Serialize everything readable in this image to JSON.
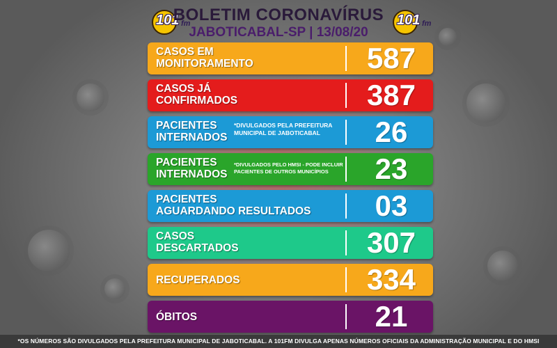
{
  "header": {
    "title": "BOLETIM CORONAVÍRUS",
    "subtitle": "JABOTICABAL-SP | 13/08/20",
    "logo_text": "101",
    "logo_suffix": "fm"
  },
  "rows": [
    {
      "label_line1": "CASOS EM",
      "label_line2": "MONITORAMENTO",
      "note": "",
      "value": "587",
      "color": "#f7a81b"
    },
    {
      "label_line1": "CASOS JÁ",
      "label_line2": "CONFIRMADOS",
      "note": "",
      "value": "387",
      "color": "#e41c1c"
    },
    {
      "label_line1": "PACIENTES",
      "label_line2": "INTERNADOS",
      "note": "*DIVULGADOS PELA PREFEITURA MUNICIPAL DE JABOTICABAL",
      "value": "26",
      "color": "#1c9ad6"
    },
    {
      "label_line1": "PACIENTES",
      "label_line2": "INTERNADOS",
      "note": "*DIVULGADOS PELO HMSI - PODE INCLUIR PACIENTES DE OUTROS MUNICÍPIOS",
      "value": "23",
      "color": "#2aa52a"
    },
    {
      "label_line1": "PACIENTES",
      "label_line2": "AGUARDANDO RESULTADOS",
      "note": "",
      "value": "03",
      "color": "#1c9ad6"
    },
    {
      "label_line1": "CASOS",
      "label_line2": "DESCARTADOS",
      "note": "",
      "value": "307",
      "color": "#1ec98a"
    },
    {
      "label_line1": "RECUPERADOS",
      "label_line2": "",
      "note": "",
      "value": "334",
      "color": "#f7a81b"
    },
    {
      "label_line1": "ÓBITOS",
      "label_line2": "",
      "note": "",
      "value": "21",
      "color": "#6a1466"
    }
  ],
  "footer": {
    "text": "*OS NÚMEROS SÃO DIVULGADOS PELA PREFEITURA MUNICIPAL DE JABOTICABAL. A 101FM DIVULGA APENAS NÚMEROS OFICIAIS DA ADMINISTRAÇÃO MUNICIPAL E DO HMSI"
  }
}
